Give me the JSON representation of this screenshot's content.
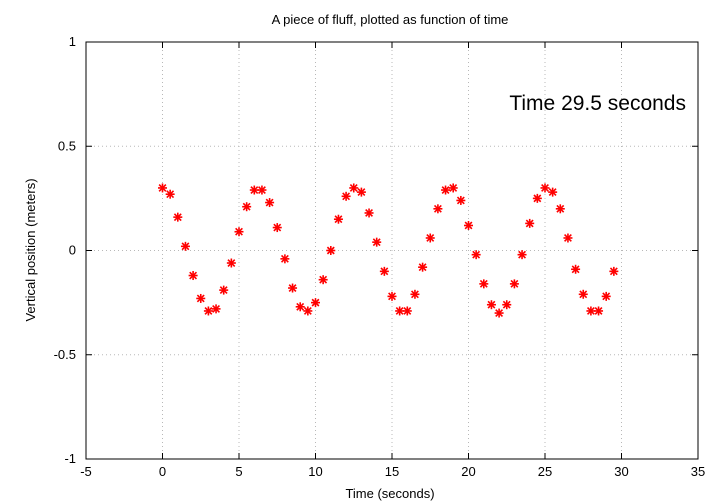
{
  "chart_data": {
    "type": "scatter",
    "title": "A piece of fluff, plotted as function of time",
    "xlabel": "Time (seconds)",
    "ylabel": "Vertical position (meters)",
    "annotation": "Time 29.5 seconds",
    "xlim": [
      -5,
      35
    ],
    "ylim": [
      -1,
      1
    ],
    "xticks": [
      "-5",
      "0",
      "5",
      "10",
      "15",
      "20",
      "25",
      "30",
      "35"
    ],
    "yticks": [
      "1",
      "0.5",
      "0",
      "-0.5",
      "-1"
    ],
    "xtick_values": [
      -5,
      0,
      5,
      10,
      15,
      20,
      25,
      30,
      35
    ],
    "ytick_values": [
      1,
      0.5,
      0,
      -0.5,
      -1
    ],
    "grid": true,
    "marker_color": "#ff0000",
    "series": [
      {
        "x": [
          0,
          0.5,
          1,
          1.5,
          2,
          2.5,
          3,
          3.5,
          4,
          4.5,
          5,
          5.5,
          6,
          6.5,
          7,
          7.5,
          8,
          8.5,
          9,
          9.5,
          10,
          10.5,
          11,
          11.5,
          12,
          12.5,
          13,
          13.5,
          14,
          14.5,
          15,
          15.5,
          16,
          16.5,
          17,
          17.5,
          18,
          18.5,
          19,
          19.5,
          20,
          20.5,
          21,
          21.5,
          22,
          22.5,
          23,
          23.5,
          24,
          24.5,
          25,
          25.5,
          26,
          26.5,
          27,
          27.5,
          28,
          28.5,
          29,
          29.5
        ],
        "y": [
          0.3,
          0.27,
          0.16,
          0.02,
          -0.12,
          -0.23,
          -0.29,
          -0.28,
          -0.19,
          -0.06,
          0.09,
          0.21,
          0.29,
          0.29,
          0.23,
          0.11,
          -0.04,
          -0.18,
          -0.27,
          -0.29,
          -0.25,
          -0.14,
          0.0,
          0.15,
          0.26,
          0.3,
          0.28,
          0.18,
          0.04,
          -0.1,
          -0.22,
          -0.29,
          -0.29,
          -0.21,
          -0.08,
          0.06,
          0.2,
          0.29,
          0.3,
          0.24,
          0.12,
          -0.02,
          -0.16,
          -0.26,
          -0.3,
          -0.26,
          -0.16,
          -0.02,
          0.13,
          0.25,
          0.3,
          0.28,
          0.2,
          0.06,
          -0.09,
          -0.21,
          -0.29,
          -0.29,
          -0.22,
          -0.1
        ]
      }
    ]
  }
}
